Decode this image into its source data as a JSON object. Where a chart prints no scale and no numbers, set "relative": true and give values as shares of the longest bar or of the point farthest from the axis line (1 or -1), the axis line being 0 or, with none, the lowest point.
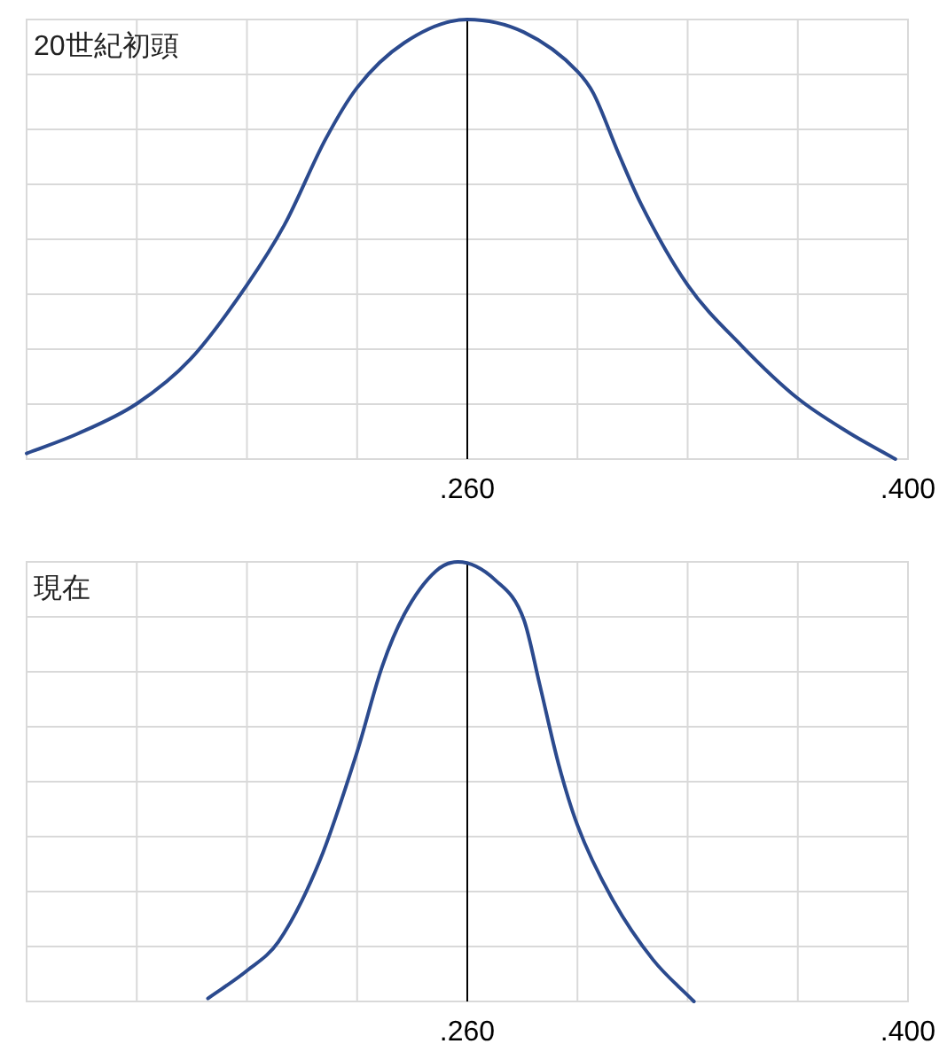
{
  "chart_data": [
    {
      "type": "line",
      "title": "20世紀初頭",
      "relative": true,
      "grid": true,
      "color": "#2b4a8e",
      "x": [
        0.12,
        0.136,
        0.155,
        0.172,
        0.19,
        0.202,
        0.215,
        0.225,
        0.24,
        0.26,
        0.278,
        0.295,
        0.3,
        0.308,
        0.315,
        0.33,
        0.347,
        0.365,
        0.381,
        0.396
      ],
      "values": [
        0.013,
        0.057,
        0.126,
        0.227,
        0.396,
        0.534,
        0.728,
        0.845,
        0.947,
        1,
        0.971,
        0.882,
        0.833,
        0.696,
        0.583,
        0.396,
        0.259,
        0.138,
        0.061,
        0
      ],
      "xlim": [
        0.12,
        0.4
      ],
      "xticks": [
        {
          "value": 0.12,
          "label": null
        },
        {
          "value": 0.155,
          "label": null
        },
        {
          "value": 0.19,
          "label": null
        },
        {
          "value": 0.225,
          "label": null
        },
        {
          "value": 0.26,
          "label": ".260"
        },
        {
          "value": 0.295,
          "label": null
        },
        {
          "value": 0.33,
          "label": null
        },
        {
          "value": 0.365,
          "label": null
        },
        {
          "value": 0.4,
          "label": ".400"
        }
      ],
      "ref_lines": [
        {
          "axis": "x",
          "value": 0.26,
          "color": "#000000"
        }
      ]
    },
    {
      "type": "line",
      "title": "現在",
      "relative": true,
      "grid": true,
      "color": "#2b4a8e",
      "x": [
        0.1776,
        0.19,
        0.2,
        0.213,
        0.225,
        0.233,
        0.24,
        0.25,
        0.257,
        0.269,
        0.278,
        0.283,
        0.289,
        0.295,
        0.306,
        0.319,
        0.332
      ],
      "values": [
        0.007,
        0.07,
        0.136,
        0.318,
        0.568,
        0.763,
        0.881,
        0.979,
        1,
        0.958,
        0.868,
        0.721,
        0.54,
        0.401,
        0.234,
        0.095,
        0
      ],
      "xlim": [
        0.12,
        0.4
      ],
      "xticks": [
        {
          "value": 0.12,
          "label": null
        },
        {
          "value": 0.155,
          "label": null
        },
        {
          "value": 0.19,
          "label": null
        },
        {
          "value": 0.225,
          "label": null
        },
        {
          "value": 0.26,
          "label": ".260"
        },
        {
          "value": 0.295,
          "label": null
        },
        {
          "value": 0.33,
          "label": null
        },
        {
          "value": 0.365,
          "label": null
        },
        {
          "value": 0.4,
          "label": ".400"
        }
      ],
      "ref_lines": [
        {
          "axis": "x",
          "value": 0.26,
          "color": "#000000"
        }
      ]
    }
  ]
}
